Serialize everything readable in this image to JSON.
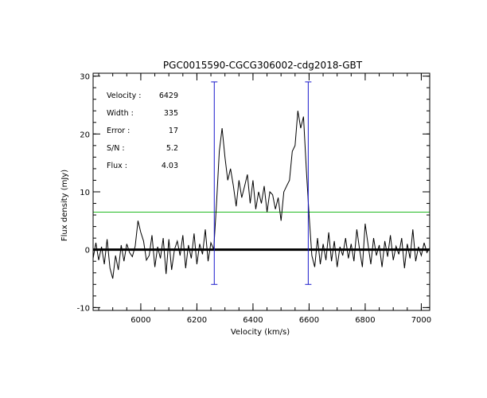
{
  "chart_data": {
    "type": "line",
    "title": "PGC0015590-CGCG306002-cdg2018-GBT",
    "xlabel": "Velocity (km/s)",
    "ylabel": "Flux density (mJy)",
    "xlim": [
      5830,
      7030
    ],
    "ylim": [
      -10.5,
      30.5
    ],
    "xticks": [
      6000,
      6200,
      6400,
      6600,
      6800,
      7000
    ],
    "yticks": [
      -10,
      0,
      10,
      20,
      30
    ],
    "x_minor_step": 50,
    "y_minor_step": 2,
    "zero_level": 0,
    "threshold_level": 6.5,
    "width_markers": {
      "velocities": [
        6262,
        6597
      ],
      "flux_range": [
        -6,
        29
      ]
    },
    "annotations": [
      {
        "label": "Velocity :",
        "value": "6429"
      },
      {
        "label": "Width :",
        "value": "335"
      },
      {
        "label": "Error :",
        "value": "17"
      },
      {
        "label": "S/N :",
        "value": "5.2"
      },
      {
        "label": "Flux :",
        "value": "4.03"
      }
    ],
    "spectrum": {
      "x": [
        5830,
        5840,
        5850,
        5860,
        5870,
        5880,
        5890,
        5900,
        5910,
        5920,
        5930,
        5940,
        5950,
        5960,
        5970,
        5980,
        5990,
        6000,
        6010,
        6020,
        6030,
        6040,
        6050,
        6060,
        6070,
        6080,
        6090,
        6100,
        6110,
        6120,
        6130,
        6140,
        6150,
        6160,
        6170,
        6180,
        6190,
        6200,
        6210,
        6220,
        6230,
        6240,
        6250,
        6260,
        6270,
        6280,
        6290,
        6300,
        6310,
        6320,
        6330,
        6340,
        6350,
        6360,
        6370,
        6380,
        6390,
        6400,
        6410,
        6420,
        6430,
        6440,
        6450,
        6460,
        6470,
        6480,
        6490,
        6500,
        6510,
        6520,
        6530,
        6540,
        6550,
        6560,
        6570,
        6580,
        6590,
        6600,
        6610,
        6620,
        6630,
        6640,
        6650,
        6660,
        6670,
        6680,
        6690,
        6700,
        6710,
        6720,
        6730,
        6740,
        6750,
        6760,
        6770,
        6780,
        6790,
        6800,
        6810,
        6820,
        6830,
        6840,
        6850,
        6860,
        6870,
        6880,
        6890,
        6900,
        6910,
        6920,
        6930,
        6940,
        6950,
        6960,
        6970,
        6980,
        6990,
        7000,
        7010,
        7020,
        7030
      ],
      "y": [
        -1.5,
        1.2,
        -1.8,
        0.5,
        -2.5,
        1.8,
        -3.2,
        -5,
        -1,
        -3.5,
        0.8,
        -2,
        1,
        -0.5,
        -1.2,
        0.6,
        5,
        3,
        1.5,
        -1.8,
        -1,
        2.5,
        -3,
        0.5,
        -1.5,
        2,
        -4.2,
        1.8,
        -3.5,
        0,
        1.5,
        -1,
        2.5,
        -3.2,
        0.8,
        -1.5,
        2.8,
        -2.5,
        1,
        -0.8,
        3.5,
        -2,
        1.2,
        0,
        8,
        17,
        21,
        16,
        12,
        14,
        11,
        7.5,
        12,
        9,
        11,
        13,
        8,
        12,
        7,
        10,
        8,
        11,
        6.5,
        10,
        9.5,
        7,
        9,
        5,
        10,
        11,
        12,
        17,
        18,
        24,
        21,
        23,
        14,
        6,
        -1,
        -3,
        2,
        -2.5,
        1,
        -1.8,
        3,
        -2,
        1.5,
        -3,
        0.5,
        -1,
        2,
        -1.5,
        1,
        -2,
        3.5,
        0,
        -3,
        4.5,
        1,
        -2.5,
        2,
        -1,
        0.8,
        -3,
        1.5,
        -1.2,
        2.5,
        -1.8,
        0.6,
        -0.8,
        2,
        -3.2,
        1,
        -1.5,
        3.5,
        -2,
        0.5,
        -1,
        1.2,
        -0.5,
        0.3
      ]
    }
  }
}
